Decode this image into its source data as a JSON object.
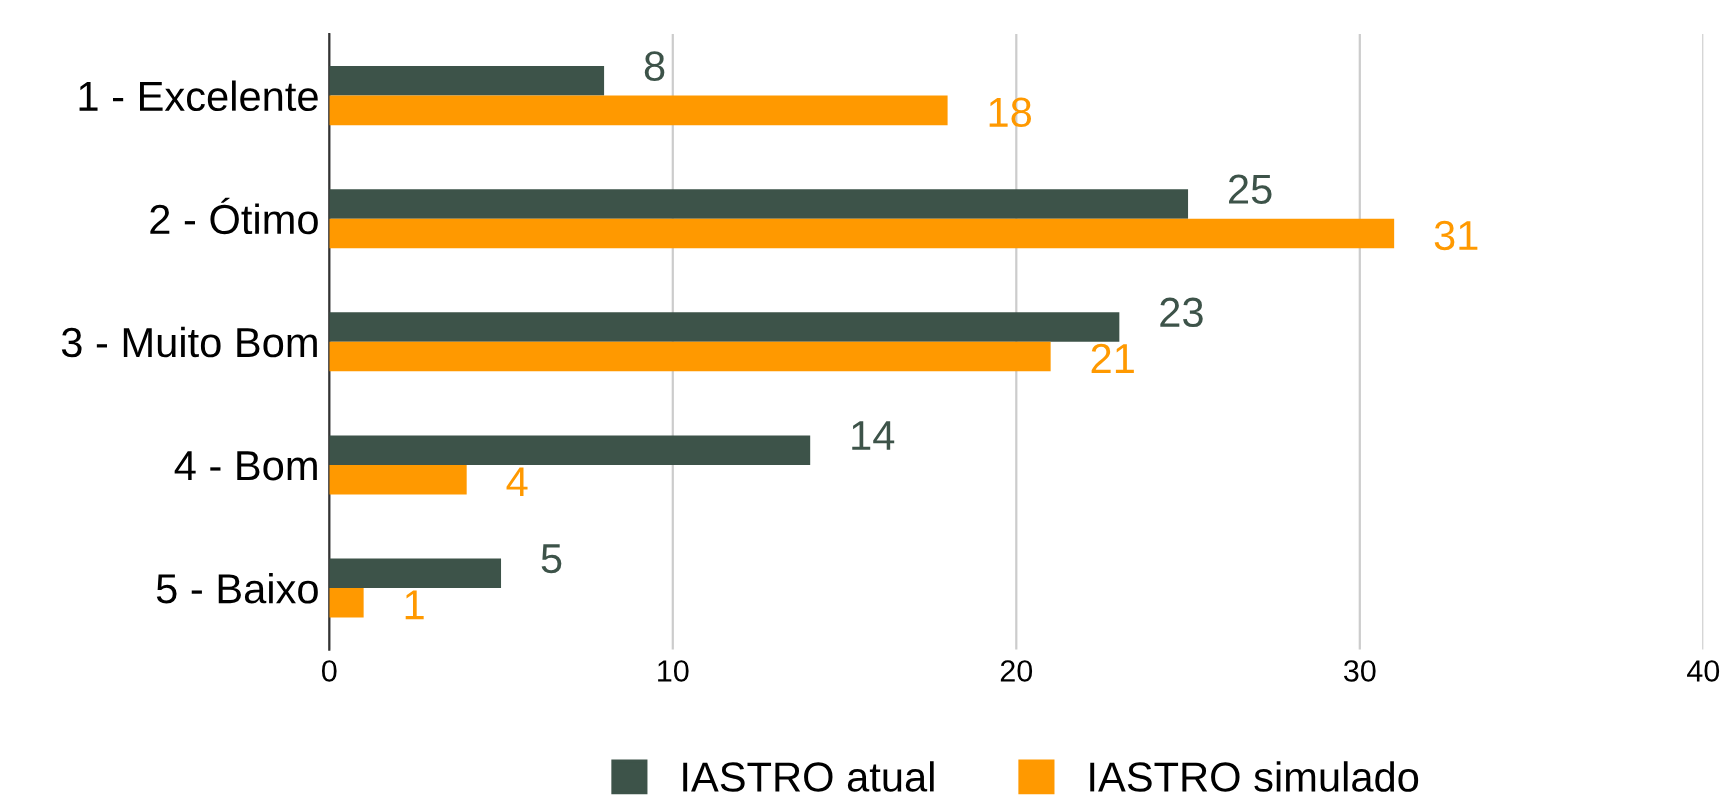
{
  "chart_data": {
    "type": "bar",
    "orientation": "horizontal",
    "categories": [
      "1 - Excelente",
      "2 - Ótimo",
      "3 - Muito Bom",
      "4 - Bom",
      "5 - Baixo"
    ],
    "series": [
      {
        "name": "IASTRO atual",
        "color": "#3d5349",
        "values": [
          8,
          25,
          23,
          14,
          5
        ]
      },
      {
        "name": "IASTRO simulado",
        "color": "#ff9900",
        "values": [
          18,
          31,
          21,
          4,
          1
        ]
      }
    ],
    "xlim": [
      0,
      40
    ],
    "xticks": [
      0,
      10,
      20,
      30,
      40
    ],
    "grid": "x",
    "legend": "bottom",
    "data_labels": true
  }
}
